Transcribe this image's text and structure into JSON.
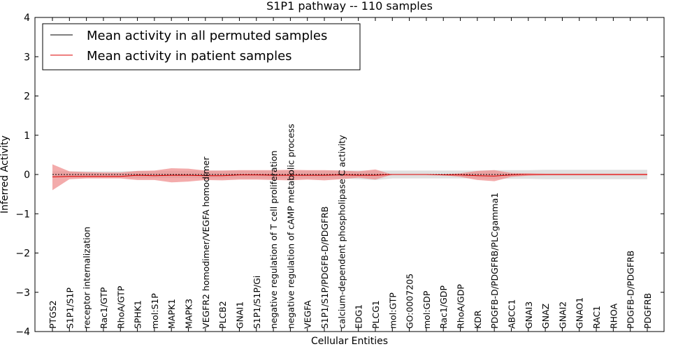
{
  "chart_data": {
    "type": "line",
    "title": "S1P1 pathway -- 110 samples",
    "xlabel": "Cellular Entities",
    "ylabel": "Inferred Activity",
    "ylim": [
      -4,
      4
    ],
    "yticks": [
      "−4",
      "−3",
      "−2",
      "−1",
      "0",
      "1",
      "2",
      "3",
      "4"
    ],
    "ytick_values": [
      -4,
      -3,
      -2,
      -1,
      0,
      1,
      2,
      3,
      4
    ],
    "legend_position": "top-left",
    "categories": [
      "PTGS2",
      "S1P1/S1P",
      "receptor internalization",
      "Rac1/GTP",
      "RhoA/GTP",
      "SPHK1",
      "mol:S1P",
      "MAPK1",
      "MAPK3",
      "VEGFR2 homodimer/VEGFA homodimer",
      "PLCB2",
      "GNAI1",
      "S1P1/S1P/Gi",
      "negative regulation of T cell proliferation",
      "negative regulation of cAMP metabolic process",
      "VEGFA",
      "S1P1/S1P/PDGFB-D/PDGFRB",
      "calcium-dependent phospholipase C activity",
      "EDG1",
      "PLCG1",
      "mol:GTP",
      "GO:0007205",
      "mol:GDP",
      "Rac1/GDP",
      "RhoA/GDP",
      "KDR",
      "PDGFB-D/PDGFRB/PLCgamma1",
      "ABCC1",
      "GNAI3",
      "GNAZ",
      "GNAI2",
      "GNAO1",
      "RAC1",
      "RHOA",
      "PDGFB-D/PDGFRB",
      "PDGFRB"
    ],
    "series": [
      {
        "name": "Mean activity in all permuted samples",
        "color": "#000000",
        "band_color": "#bbbbbb",
        "values": [
          0.0,
          0.0,
          0.0,
          0.0,
          0.0,
          0.0,
          0.0,
          0.0,
          0.0,
          0.0,
          0.0,
          0.0,
          0.0,
          0.0,
          0.0,
          0.0,
          0.0,
          0.0,
          0.0,
          0.0,
          0.0,
          0.0,
          0.0,
          0.0,
          0.0,
          0.0,
          0.0,
          0.0,
          0.0,
          0.0,
          0.0,
          0.0,
          0.0,
          0.0,
          0.0,
          0.0
        ],
        "upper": [
          0.08,
          0.08,
          0.08,
          0.08,
          0.08,
          0.09,
          0.09,
          0.09,
          0.09,
          0.1,
          0.1,
          0.1,
          0.1,
          0.1,
          0.1,
          0.1,
          0.1,
          0.1,
          0.1,
          0.1,
          0.1,
          0.1,
          0.1,
          0.1,
          0.1,
          0.1,
          0.11,
          0.11,
          0.11,
          0.12,
          0.12,
          0.12,
          0.12,
          0.12,
          0.12,
          0.12
        ],
        "lower": [
          -0.08,
          -0.08,
          -0.08,
          -0.08,
          -0.08,
          -0.09,
          -0.09,
          -0.09,
          -0.09,
          -0.1,
          -0.1,
          -0.1,
          -0.1,
          -0.1,
          -0.1,
          -0.1,
          -0.1,
          -0.1,
          -0.12,
          -0.14,
          -0.1,
          -0.1,
          -0.1,
          -0.1,
          -0.1,
          -0.1,
          -0.11,
          -0.11,
          -0.11,
          -0.12,
          -0.12,
          -0.12,
          -0.12,
          -0.12,
          -0.12,
          -0.12
        ]
      },
      {
        "name": "Mean activity in patient samples",
        "color": "#dd0000",
        "band_color": "#ee8888",
        "values": [
          -0.06,
          -0.05,
          -0.05,
          -0.05,
          -0.05,
          -0.02,
          -0.03,
          -0.02,
          -0.02,
          -0.03,
          -0.03,
          -0.01,
          -0.01,
          -0.02,
          -0.02,
          -0.02,
          -0.02,
          -0.01,
          -0.02,
          -0.02,
          0.0,
          0.0,
          0.0,
          -0.01,
          -0.01,
          -0.03,
          -0.04,
          -0.01,
          0.0,
          0.0,
          0.0,
          0.0,
          0.0,
          0.0,
          0.0,
          0.0
        ],
        "upper": [
          0.26,
          0.08,
          0.06,
          0.05,
          0.05,
          0.09,
          0.1,
          0.16,
          0.15,
          0.1,
          0.1,
          0.11,
          0.11,
          0.11,
          0.12,
          0.11,
          0.11,
          0.1,
          0.08,
          0.13,
          0.0,
          0.0,
          0.0,
          0.01,
          0.03,
          0.09,
          0.11,
          0.04,
          0.03,
          0.02,
          0.02,
          0.02,
          0.02,
          0.02,
          0.02,
          0.02
        ],
        "lower": [
          -0.4,
          -0.12,
          -0.1,
          -0.1,
          -0.1,
          -0.14,
          -0.14,
          -0.2,
          -0.18,
          -0.14,
          -0.15,
          -0.13,
          -0.13,
          -0.14,
          -0.15,
          -0.13,
          -0.15,
          -0.12,
          -0.08,
          -0.13,
          0.0,
          0.0,
          0.0,
          -0.02,
          -0.06,
          -0.14,
          -0.17,
          -0.06,
          -0.03,
          -0.02,
          -0.02,
          -0.02,
          -0.02,
          -0.02,
          -0.02,
          -0.02
        ]
      }
    ]
  }
}
